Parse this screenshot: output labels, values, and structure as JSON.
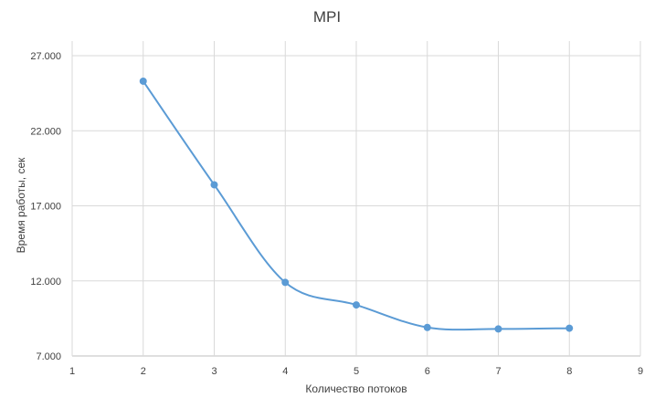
{
  "chart_data": {
    "type": "line",
    "title": "MPI",
    "xlabel": "Количество потоков",
    "ylabel": "Время работы, сек",
    "x_ticks": [
      "1",
      "2",
      "3",
      "4",
      "5",
      "6",
      "7",
      "8",
      "9"
    ],
    "y_ticks": [
      "7.000",
      "12.000",
      "17.000",
      "22.000",
      "27.000"
    ],
    "xlim": [
      1,
      9
    ],
    "ylim": [
      7,
      28
    ],
    "grid": true,
    "smooth": true,
    "series": [
      {
        "x": [
          2,
          3,
          4,
          5,
          6,
          7,
          8
        ],
        "y": [
          25.3,
          18.4,
          11.9,
          10.4,
          8.9,
          8.8,
          8.85
        ],
        "color": "#5b9bd5"
      }
    ]
  }
}
